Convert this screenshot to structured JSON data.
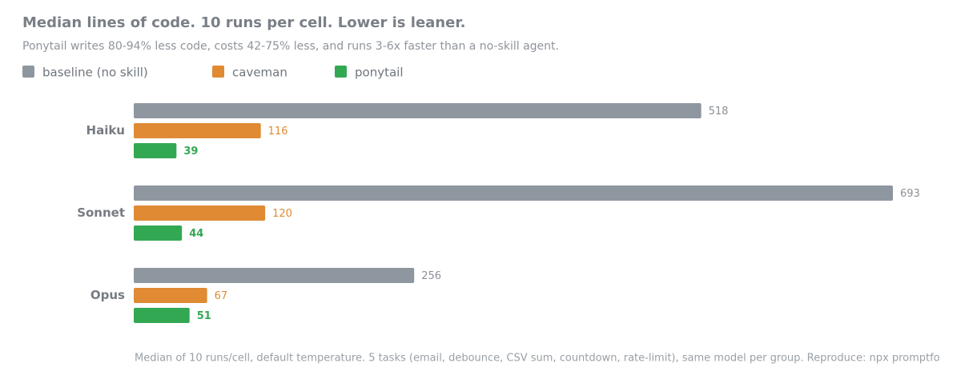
{
  "chart_data": {
    "type": "bar",
    "orientation": "horizontal",
    "title": "Median lines of code. 10 runs per cell. Lower is leaner.",
    "subtitle": "Ponytail writes 80-94% less code, costs 42-75% less, and runs 3-6x faster than a no-skill agent.",
    "categories": [
      "Haiku",
      "Sonnet",
      "Opus"
    ],
    "series": [
      {
        "name": "baseline (no skill)",
        "color": "#8e969f",
        "values": [
          518,
          693,
          256
        ]
      },
      {
        "name": "caveman",
        "color": "#e08a34",
        "values": [
          116,
          120,
          67
        ]
      },
      {
        "name": "ponytail",
        "color": "#33a853",
        "values": [
          39,
          44,
          51
        ]
      }
    ],
    "note": "Median of 10 runs/cell, default temperature. 5 tasks (email, debounce, CSV sum, countdown, rate-limit), same model per group. Reproduce: npx promptfo"
  }
}
